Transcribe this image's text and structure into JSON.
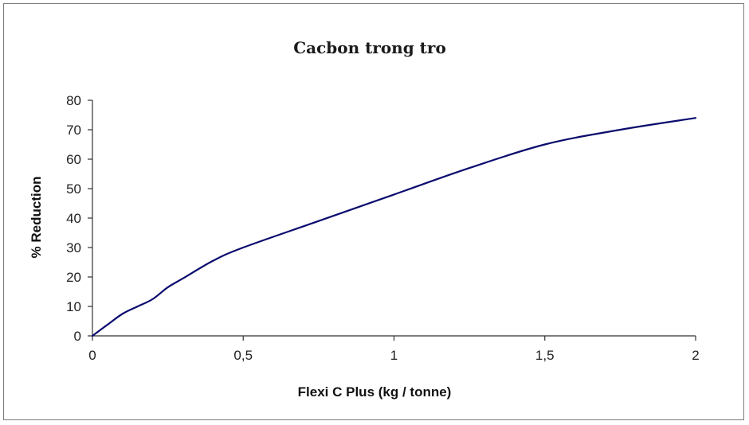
{
  "chart_data": {
    "type": "line",
    "title": "Cacbon trong tro",
    "xlabel": "Flexi C Plus (kg / tonne)",
    "ylabel": "% Reduction",
    "xlim": [
      0,
      2
    ],
    "ylim": [
      0,
      80
    ],
    "x_ticks": [
      "0",
      "0,5",
      "1",
      "1,5",
      "2"
    ],
    "y_ticks": [
      "0",
      "10",
      "20",
      "30",
      "40",
      "50",
      "60",
      "70",
      "80"
    ],
    "grid": false,
    "legend": "none",
    "series": [
      {
        "color": "#0b0b6e",
        "x": [
          0,
          0.05,
          0.1,
          0.15,
          0.2,
          0.25,
          0.3,
          0.4,
          0.5,
          0.75,
          1.0,
          1.25,
          1.5,
          1.75,
          2.0
        ],
        "y": [
          0,
          3.8,
          7.5,
          10,
          12.5,
          16.5,
          19.5,
          25.5,
          30,
          39,
          48,
          57,
          65,
          70,
          74
        ]
      }
    ]
  }
}
